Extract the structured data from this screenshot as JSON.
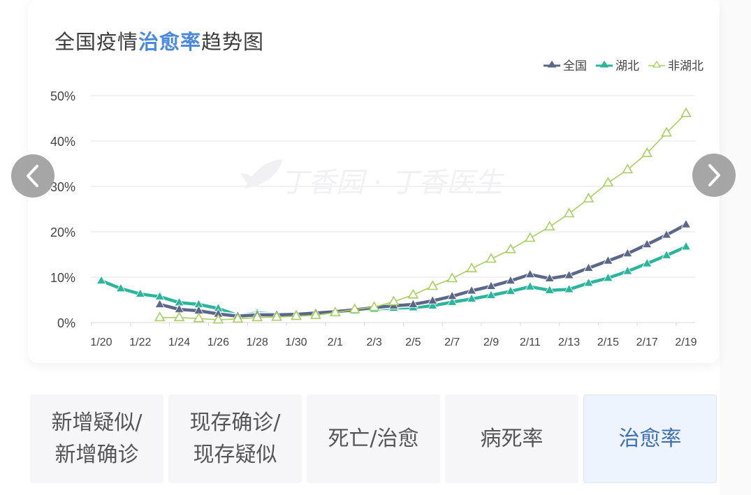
{
  "title": {
    "prefix": "全国疫情",
    "highlight": "治愈率",
    "suffix": "趋势图"
  },
  "watermark": "丁香园 · 丁香医生",
  "legend": [
    {
      "name": "全国",
      "color": "#5a6786",
      "marker": "filled-triangle"
    },
    {
      "name": "湖北",
      "color": "#2bb59a",
      "marker": "filled-triangle"
    },
    {
      "name": "非湖北",
      "color": "#a9cf63",
      "marker": "hollow-triangle"
    }
  ],
  "nav": {
    "prev": "previous-chart",
    "next": "next-chart"
  },
  "tabs": [
    {
      "label": "新增疑似/\n新增确诊",
      "active": false
    },
    {
      "label": "现存确诊/\n现存疑似",
      "active": false
    },
    {
      "label": "死亡/治愈",
      "active": false
    },
    {
      "label": "病死率",
      "active": false
    },
    {
      "label": "治愈率",
      "active": true
    }
  ],
  "chart_data": {
    "type": "line",
    "title": "全国疫情治愈率趋势图",
    "xlabel": "",
    "ylabel": "",
    "ylim": [
      0,
      50
    ],
    "yticks": [
      "0%",
      "10%",
      "20%",
      "30%",
      "40%",
      "50%"
    ],
    "xtick_labels": [
      "1/20",
      "1/22",
      "1/24",
      "1/26",
      "1/28",
      "1/30",
      "2/1",
      "2/3",
      "2/5",
      "2/7",
      "2/9",
      "2/11",
      "2/13",
      "2/15",
      "2/17",
      "2/19"
    ],
    "grid": true,
    "legend_position": "top-right",
    "x": [
      "1/20",
      "1/21",
      "1/22",
      "1/23",
      "1/24",
      "1/25",
      "1/26",
      "1/27",
      "1/28",
      "1/29",
      "1/30",
      "1/31",
      "2/1",
      "2/2",
      "2/3",
      "2/4",
      "2/5",
      "2/6",
      "2/7",
      "2/8",
      "2/9",
      "2/10",
      "2/11",
      "2/12",
      "2/13",
      "2/14",
      "2/15",
      "2/16",
      "2/17",
      "2/18",
      "2/19"
    ],
    "series": [
      {
        "name": "全国",
        "color": "#5a6786",
        "values": [
          null,
          null,
          null,
          4.0,
          2.9,
          2.6,
          1.9,
          1.4,
          1.7,
          1.7,
          1.8,
          2.1,
          2.4,
          2.8,
          3.3,
          3.7,
          4.0,
          4.8,
          5.8,
          7.0,
          8.0,
          9.2,
          10.6,
          9.7,
          10.4,
          12.0,
          13.6,
          15.2,
          17.2,
          19.3,
          21.6
        ]
      },
      {
        "name": "湖北",
        "color": "#2bb59a",
        "values": [
          9.2,
          7.5,
          6.3,
          5.7,
          4.4,
          4.0,
          3.1,
          1.6,
          2.1,
          1.9,
          1.9,
          2.2,
          2.3,
          2.6,
          3.0,
          3.2,
          3.3,
          3.7,
          4.5,
          5.2,
          6.0,
          6.9,
          7.9,
          7.1,
          7.3,
          8.7,
          9.8,
          11.3,
          13.0,
          14.8,
          16.7
        ]
      },
      {
        "name": "非湖北",
        "color": "#a9cf63",
        "values": [
          null,
          null,
          null,
          1.1,
          1.1,
          0.9,
          0.6,
          0.8,
          1.1,
          1.2,
          1.4,
          1.6,
          2.2,
          2.9,
          3.4,
          4.6,
          6.1,
          8.0,
          9.7,
          11.9,
          14.0,
          16.1,
          18.6,
          21.1,
          24.0,
          27.3,
          30.8,
          33.7,
          37.3,
          41.8,
          46.1
        ]
      }
    ]
  }
}
